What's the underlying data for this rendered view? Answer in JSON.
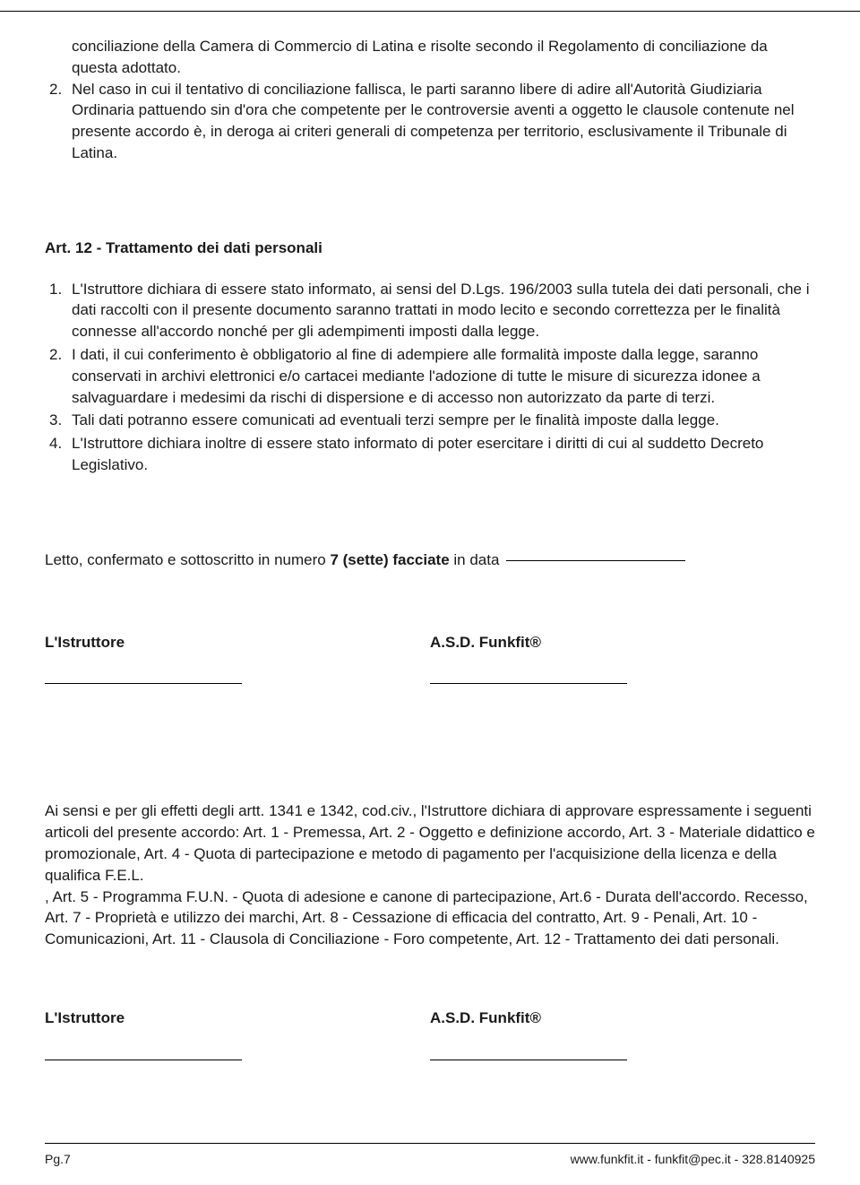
{
  "topSection": {
    "continuation": "conciliazione della Camera di Commercio di Latina e risolte secondo il Regolamento di  conciliazione da questa adottato.",
    "item2Num": "2.",
    "item2Text": "Nel caso in cui il tentativo di conciliazione fallisca, le parti saranno libere di adire all'Autorità Giudiziaria Ordinaria pattuendo sin d'ora che competente per le controversie aventi a oggetto le clausole contenute nel presente accordo è, in deroga ai criteri generali di competenza per territorio, esclusivamente il Tribunale di Latina."
  },
  "article12": {
    "heading": "Art. 12  - Trattamento dei dati personali",
    "items": [
      {
        "num": "1.",
        "text": "L'Istruttore dichiara di essere stato informato, ai sensi del D.Lgs. 196/2003 sulla tutela dei dati personali, che i dati raccolti con il presente documento saranno trattati in modo lecito e secondo correttezza per le finalità connesse all'accordo nonché per gli adempimenti imposti dalla legge."
      },
      {
        "num": "2.",
        "text": "I dati, il cui conferimento è obbligatorio al fine di adempiere alle formalità imposte dalla legge, saranno conservati in archivi elettronici e/o cartacei mediante l'adozione di tutte le misure di sicurezza idonee a salvaguardare i medesimi da rischi di dispersione e di accesso non autorizzato da parte di terzi."
      },
      {
        "num": "3.",
        "text": "Tali dati potranno essere comunicati ad eventuali terzi sempre per le finalità imposte dalla legge."
      },
      {
        "num": "4.",
        "text": "L'Istruttore dichiara inoltre di essere stato informato di poter esercitare i diritti di cui al suddetto Decreto Legislativo."
      }
    ]
  },
  "closing": {
    "prefix": "Letto, confermato e sottoscritto in numero ",
    "bold": "7 (sette) facciate",
    "suffix": " in data"
  },
  "signatures": {
    "left": "L'Istruttore",
    "right": "A.S.D. Funkfit®"
  },
  "approval": {
    "text": "Ai sensi e per gli effetti degli artt. 1341 e 1342, cod.civ., l'Istruttore dichiara di approvare espressamente i seguenti articoli del presente accordo: Art. 1 - Premessa,  Art. 2 -  Oggetto e definizione accordo, Art. 3 - Materiale didattico e promozionale, Art. 4 - Quota di partecipazione e metodo di pagamento per l'acquisizione della licenza e della qualifica F.E.L.\n, Art. 5 - Programma F.U.N. - Quota di adesione e canone di partecipazione, Art.6 - Durata dell'accordo. Recesso, Art. 7 - Proprietà e utilizzo dei marchi, Art. 8 - Cessazione di efficacia del contratto, Art. 9 - Penali, Art. 10 - Comunicazioni, Art. 11 - Clausola di Conciliazione - Foro competente, Art. 12  - Trattamento dei dati personali."
  },
  "footer": {
    "pageNum": "Pg.7",
    "contact": "www.funkfit.it - funkfit@pec.it - 328.8140925"
  }
}
